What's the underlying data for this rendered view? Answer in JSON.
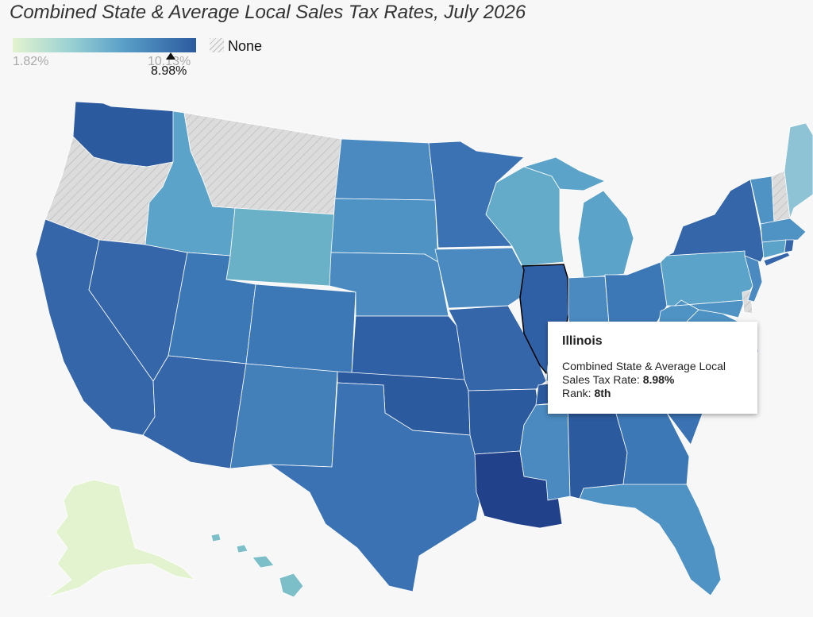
{
  "title": "Combined State & Average Local Sales Tax Rates, July 2026",
  "legend": {
    "min_label": "1.82%",
    "max_label": "10.13%",
    "marker_label": "8.98%",
    "marker_value": 8.98,
    "none_label": "None",
    "colors": {
      "low": "#e4f3cf",
      "mid": "#5aa0c8",
      "high": "#2b5a9f",
      "none": "#dcdcdc"
    }
  },
  "tooltip": {
    "state": "Illinois",
    "rate_label_line1": "Combined State & Average Local",
    "rate_label_line2": "Sales Tax Rate:",
    "rate_value": "8.98%",
    "rank_label": "Rank:",
    "rank_value": "8th"
  }
}
